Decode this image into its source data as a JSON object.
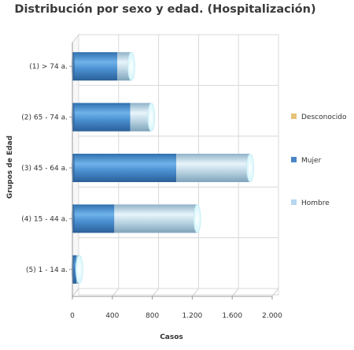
{
  "chart_data": {
    "type": "bar",
    "orientation": "horizontal",
    "stacked": true,
    "title": "Distribución por sexo y edad. (Hospitalización)",
    "xlabel": "Casos",
    "ylabel": "Grupos de Edad",
    "categories": [
      "(1) > 74 a.",
      "(2) 65 - 74 a.",
      "(3) 45 - 64 a.",
      "(4) 15 - 44 a.",
      "(5) 1 - 14 a."
    ],
    "series": [
      {
        "name": "Mujer",
        "color": "#4a86c8",
        "values": [
          450,
          580,
          1040,
          420,
          40
        ]
      },
      {
        "name": "Hombre",
        "color": "#b8d4e8",
        "values": [
          140,
          210,
          740,
          830,
          30
        ]
      },
      {
        "name": "Desconocido",
        "color": "#e8c27a",
        "values": [
          0,
          0,
          0,
          0,
          0
        ]
      }
    ],
    "xlim": [
      0,
      2000
    ],
    "xticks": [
      "0",
      "400",
      "800",
      "1.200",
      "1.600",
      "2.000"
    ],
    "grid": true,
    "legend": [
      "Desconocido",
      "Mujer",
      "Hombre"
    ],
    "legend_position": "right"
  }
}
